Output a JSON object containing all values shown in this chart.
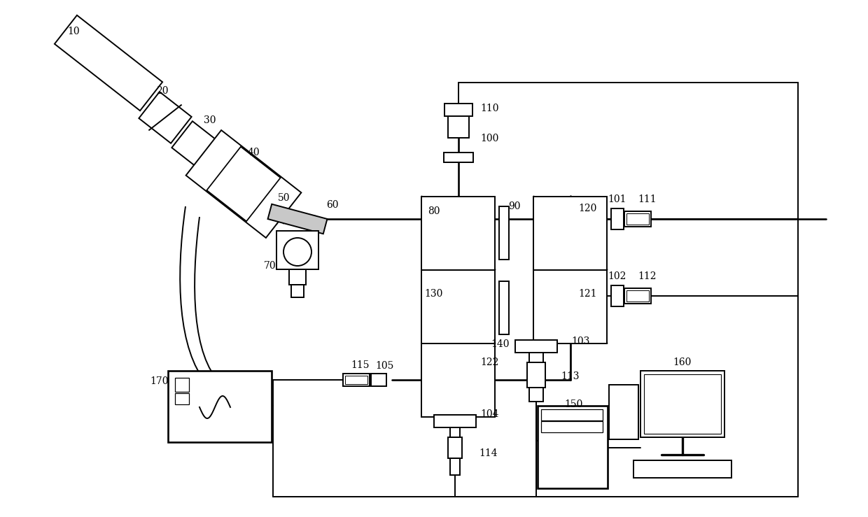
{
  "background_color": "#ffffff",
  "line_color": "#000000",
  "lw": 1.4,
  "figsize": [
    12.4,
    7.39
  ],
  "dpi": 100
}
